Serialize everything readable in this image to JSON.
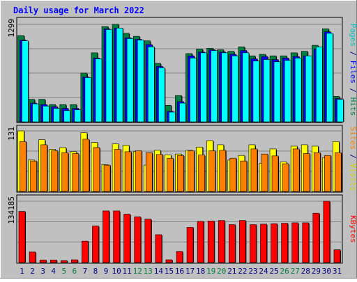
{
  "chart_data": {
    "type": "bar",
    "title": "Daily usage for March 2022",
    "categories": [
      "1",
      "2",
      "3",
      "4",
      "5",
      "6",
      "7",
      "8",
      "9",
      "10",
      "11",
      "12",
      "13",
      "14",
      "15",
      "16",
      "17",
      "18",
      "19",
      "20",
      "21",
      "22",
      "23",
      "24",
      "25",
      "26",
      "27",
      "28",
      "29",
      "30",
      "31"
    ],
    "weekend_days": [
      "5",
      "6",
      "12",
      "13",
      "19",
      "20",
      "26",
      "27"
    ],
    "panels": [
      {
        "key": "hits_files_pages",
        "ymax_label": "1299",
        "ylim": [
          0,
          1299
        ],
        "series": [
          {
            "name": "Hits",
            "color": "#008040",
            "values": [
              1150,
              300,
              300,
              230,
              230,
              230,
              650,
              920,
              1270,
              1300,
              1180,
              1140,
              1080,
              780,
              220,
              350,
              910,
              970,
              980,
              960,
              940,
              1000,
              880,
              900,
              880,
              880,
              920,
              940,
              1020,
              1240,
              340
            ]
          },
          {
            "name": "Files",
            "color": "#0000ff",
            "values": [
              1090,
              250,
              230,
              200,
              180,
              180,
              600,
              850,
              1240,
              1250,
              1120,
              1100,
              1030,
              740,
              140,
              270,
              880,
              930,
              960,
              930,
              900,
              950,
              840,
              870,
              830,
              850,
              870,
              880,
              970,
              1200,
              310
            ]
          },
          {
            "name": "Pages",
            "color": "#00ffff",
            "values": [
              1080,
              240,
              210,
              180,
              150,
              160,
              590,
              840,
              1230,
              1250,
              1110,
              1090,
              1000,
              720,
              130,
              250,
              850,
              920,
              950,
              920,
              880,
              920,
              810,
              830,
              800,
              820,
              850,
              880,
              1000,
              1180,
              300
            ]
          }
        ]
      },
      {
        "key": "visits_sites",
        "ymax_label": "131",
        "ylim": [
          0,
          131
        ],
        "series": [
          {
            "name": "Visits",
            "color": "#ffff00",
            "values": [
              131,
              68,
              112,
              91,
              95,
              86,
              127,
              106,
              58,
              103,
              100,
              86,
              57,
              89,
              79,
              81,
              89,
              96,
              110,
              101,
              68,
              78,
              101,
              61,
              92,
              64,
              98,
              101,
              98,
              73,
              108
            ]
          },
          {
            "name": "Sites",
            "color": "#ff8000",
            "values": [
              108,
              66,
              101,
              88,
              84,
              82,
              113,
              95,
              57,
              91,
              86,
              88,
              84,
              80,
              72,
              78,
              88,
              79,
              88,
              89,
              72,
              66,
              92,
              81,
              77,
              60,
              92,
              82,
              84,
              78,
              84
            ]
          }
        ]
      },
      {
        "key": "kbytes",
        "ymax_label": "134185",
        "ylim": [
          0,
          134185
        ],
        "series": [
          {
            "name": "KBytes",
            "color": "#ff0000",
            "values": [
              112000,
              23000,
              5500,
              5500,
              4000,
              6000,
              47000,
              80000,
              113000,
              113000,
              106000,
              100000,
              95000,
              61000,
              6000,
              24000,
              77000,
              90000,
              91000,
              92000,
              83000,
              92000,
              83000,
              84000,
              85000,
              86000,
              87000,
              87000,
              108000,
              134185,
              28000
            ]
          }
        ]
      }
    ],
    "right_labels": [
      {
        "parts": [
          {
            "text": "Pages",
            "color": "#00c0c0"
          },
          {
            "text": " / ",
            "color": "#000080"
          },
          {
            "text": "Files",
            "color": "#0000ff"
          },
          {
            "text": " / ",
            "color": "#000080"
          },
          {
            "text": "Hits",
            "color": "#008040"
          }
        ]
      },
      {
        "parts": [
          {
            "text": "Sites",
            "color": "#ff8000"
          },
          {
            "text": " / ",
            "color": "#000080"
          },
          {
            "text": "Visits",
            "color": "#d0d000"
          }
        ]
      },
      {
        "parts": [
          {
            "text": "KBytes",
            "color": "#ff0000"
          }
        ]
      }
    ],
    "colors": {
      "title": "#0000ff",
      "background": "#c0c0c0",
      "weekday_label": "#000080",
      "weekend_label": "#008040",
      "grid": "#808080"
    }
  }
}
